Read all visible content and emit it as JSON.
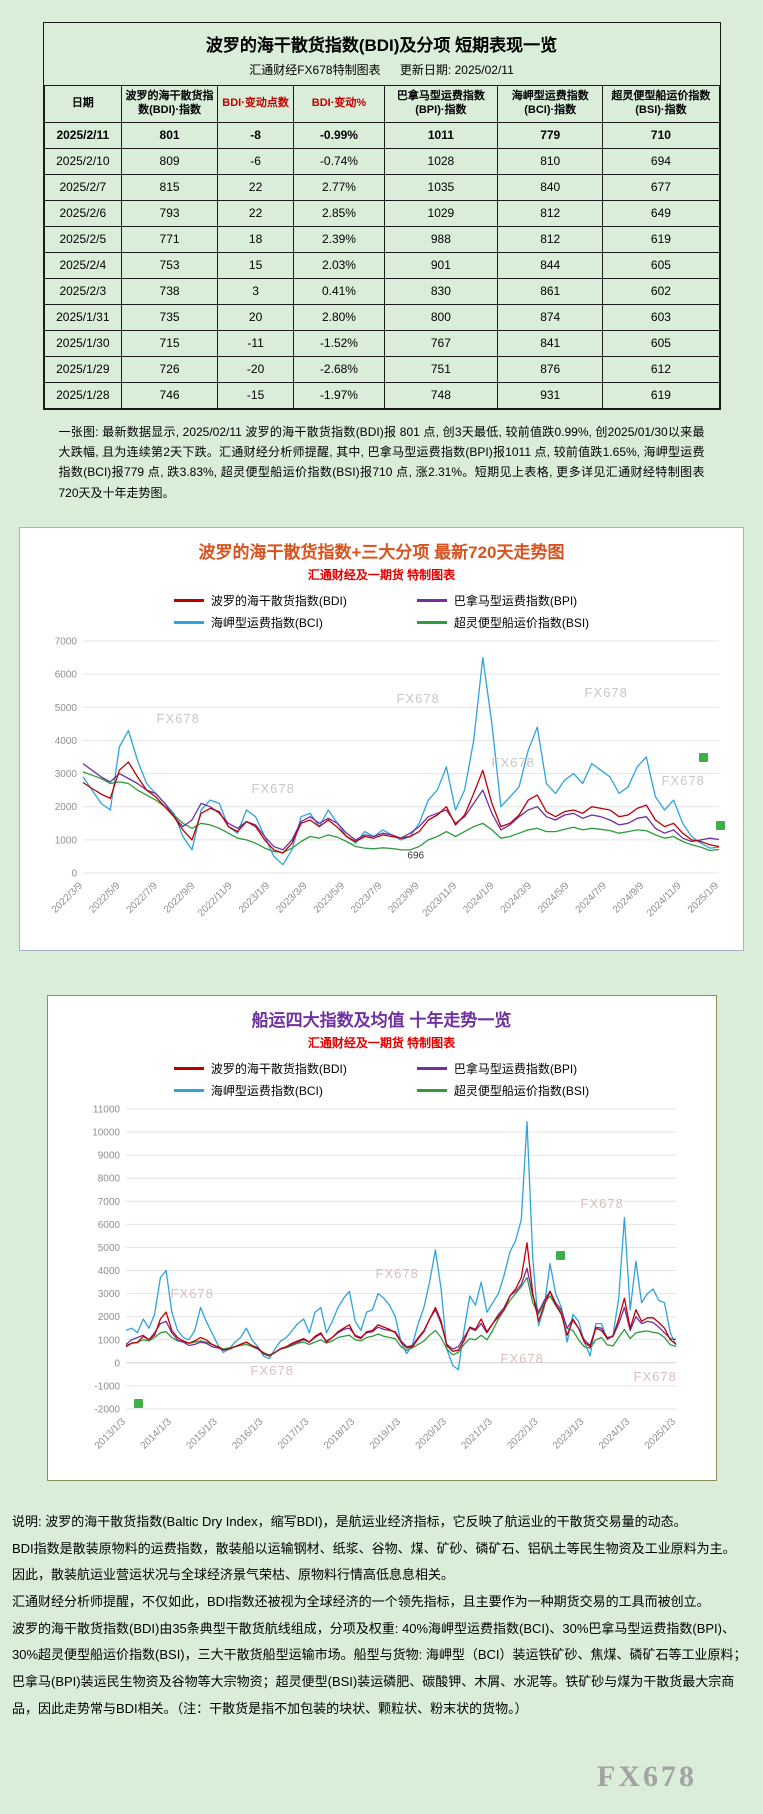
{
  "page": {
    "watermark": "FX678"
  },
  "colors": {
    "bdi": "#c00000",
    "bpi": "#7030a0",
    "bci": "#2fa3dc",
    "bsi": "#2e9b3e",
    "chart1_title": "#d9531e",
    "chart2_title": "#7030a0",
    "subtitle_red": "#e00000",
    "header_red": "#c00000"
  },
  "table_section": {
    "title": "波罗的海干散货指数(BDI)及分项 短期表现一览",
    "subtitle_left": "汇通财经FX678特制图表",
    "subtitle_right": "更新日期: 2025/02/11",
    "columns": [
      "日期",
      "波罗的海干散货指数(BDI)·指数",
      "BDI·变动点数",
      "BDI·变动%",
      "巴拿马型运费指数(BPI)·指数",
      "海岬型运费指数(BCI)·指数",
      "超灵便型船运价指数(BSI)·指数"
    ],
    "rows": [
      [
        "2025/2/11",
        "801",
        "-8",
        "-0.99%",
        "1011",
        "779",
        "710"
      ],
      [
        "2025/2/10",
        "809",
        "-6",
        "-0.74%",
        "1028",
        "810",
        "694"
      ],
      [
        "2025/2/7",
        "815",
        "22",
        "2.77%",
        "1035",
        "840",
        "677"
      ],
      [
        "2025/2/6",
        "793",
        "22",
        "2.85%",
        "1029",
        "812",
        "649"
      ],
      [
        "2025/2/5",
        "771",
        "18",
        "2.39%",
        "988",
        "812",
        "619"
      ],
      [
        "2025/2/4",
        "753",
        "15",
        "2.03%",
        "901",
        "844",
        "605"
      ],
      [
        "2025/2/3",
        "738",
        "3",
        "0.41%",
        "830",
        "861",
        "602"
      ],
      [
        "2025/1/31",
        "735",
        "20",
        "2.80%",
        "800",
        "874",
        "603"
      ],
      [
        "2025/1/30",
        "715",
        "-11",
        "-1.52%",
        "767",
        "841",
        "605"
      ],
      [
        "2025/1/29",
        "726",
        "-20",
        "-2.68%",
        "751",
        "876",
        "612"
      ],
      [
        "2025/1/28",
        "746",
        "-15",
        "-1.97%",
        "748",
        "931",
        "619"
      ]
    ],
    "note": "一张图: 最新数据显示, 2025/02/11 波罗的海干散货指数(BDI)报 801 点, 创3天最低, 较前值跌0.99%, 创2025/01/30以来最大跌幅, 且为连续第2天下跌。汇通财经分析师提醒, 其中, 巴拿马型运费指数(BPI)报1011 点, 较前值跌1.65%, 海岬型运费指数(BCI)报779 点, 跌3.83%, 超灵便型船运价指数(BSI)报710 点, 涨2.31%。短期见上表格, 更多详见汇通财经特制图表720天及十年走势图。"
  },
  "chart_data": [
    {
      "type": "line",
      "title": "波罗的海干散货指数+三大分项  最新720天走势图",
      "subtitle": "汇通财经及一期货 特制图表",
      "ylim": [
        0,
        7000
      ],
      "ytick_step": 1000,
      "grid": true,
      "legend_position": "top",
      "xticklabels": [
        "2022/3/9",
        "2022/5/9",
        "2022/7/9",
        "2022/9/9",
        "2022/11/9",
        "2023/1/9",
        "2023/3/9",
        "2023/5/9",
        "2023/7/9",
        "2023/9/9",
        "2023/11/9",
        "2024/1/9",
        "2024/3/9",
        "2024/5/9",
        "2024/7/9",
        "2024/9/9",
        "2024/11/9",
        "2025/1/9"
      ],
      "annotation": {
        "text": "696",
        "x_frac": 0.51,
        "y": 430
      },
      "series": [
        {
          "key": "bdi",
          "name": "波罗的海干散货指数(BDI)",
          "color": "#c00000",
          "values": [
            2730,
            2550,
            2380,
            2250,
            3100,
            3350,
            2900,
            2500,
            2300,
            2000,
            1700,
            1300,
            1000,
            1800,
            1950,
            1850,
            1400,
            1250,
            1550,
            1400,
            1000,
            700,
            600,
            900,
            1500,
            1600,
            1400,
            1600,
            1380,
            1100,
            950,
            1100,
            1050,
            1150,
            1100,
            1050,
            1100,
            1250,
            1600,
            1750,
            2000,
            1450,
            1750,
            2400,
            3100,
            2100,
            1400,
            1500,
            1750,
            2200,
            2350,
            1850,
            1700,
            1850,
            1900,
            1800,
            2000,
            1950,
            1900,
            1700,
            1750,
            1950,
            2050,
            1600,
            1400,
            1500,
            1200,
            1000,
            950,
            850,
            801
          ]
        },
        {
          "key": "bpi",
          "name": "巴拿马型运费指数(BPI)",
          "color": "#7030a0",
          "values": [
            3300,
            3100,
            2900,
            2750,
            3000,
            2850,
            2700,
            2500,
            2400,
            2100,
            1700,
            1400,
            1600,
            2100,
            2000,
            1800,
            1500,
            1350,
            1550,
            1450,
            1100,
            800,
            700,
            1000,
            1550,
            1700,
            1500,
            1650,
            1500,
            1200,
            1000,
            1150,
            1100,
            1200,
            1150,
            1050,
            1200,
            1400,
            1700,
            1800,
            1900,
            1500,
            1700,
            2100,
            2500,
            1800,
            1300,
            1450,
            1700,
            1900,
            2000,
            1700,
            1600,
            1750,
            1800,
            1650,
            1750,
            1700,
            1600,
            1450,
            1500,
            1650,
            1700,
            1350,
            1200,
            1300,
            1050,
            950,
            1000,
            1050,
            1011
          ]
        },
        {
          "key": "bci",
          "name": "海岬型运费指数(BCI)",
          "color": "#2fa3dc",
          "values": [
            2900,
            2500,
            2100,
            1900,
            3800,
            4300,
            3400,
            2700,
            2400,
            2100,
            1800,
            1100,
            700,
            1900,
            2200,
            2100,
            1400,
            1200,
            1900,
            1700,
            1100,
            500,
            250,
            700,
            1700,
            1800,
            1400,
            1900,
            1500,
            1100,
            900,
            1250,
            1100,
            1300,
            1150,
            1000,
            1100,
            1500,
            2200,
            2500,
            3200,
            1900,
            2500,
            4000,
            6500,
            4500,
            2000,
            2300,
            2600,
            3700,
            4400,
            2700,
            2400,
            2800,
            3000,
            2700,
            3300,
            3100,
            2900,
            2400,
            2600,
            3200,
            3500,
            2300,
            1900,
            2200,
            1500,
            1100,
            900,
            750,
            779
          ]
        },
        {
          "key": "bsi",
          "name": "超灵便型船运价指数(BSI)",
          "color": "#2e9b3e",
          "values": [
            3050,
            2950,
            2850,
            2700,
            2750,
            2700,
            2500,
            2350,
            2200,
            2000,
            1750,
            1500,
            1350,
            1500,
            1450,
            1350,
            1200,
            1050,
            1000,
            900,
            750,
            650,
            620,
            750,
            950,
            1100,
            1050,
            1150,
            1080,
            950,
            800,
            750,
            730,
            760,
            740,
            700,
            696,
            800,
            1000,
            1100,
            1250,
            1100,
            1250,
            1400,
            1500,
            1300,
            1050,
            1100,
            1200,
            1300,
            1350,
            1250,
            1250,
            1320,
            1380,
            1300,
            1350,
            1320,
            1280,
            1200,
            1250,
            1300,
            1280,
            1150,
            1050,
            1100,
            950,
            850,
            780,
            680,
            710
          ]
        }
      ]
    },
    {
      "type": "line",
      "title": "船运四大指数及均值 十年走势一览",
      "subtitle": "汇通财经及一期货 特制图表",
      "ylim": [
        -2000,
        11000
      ],
      "ytick_step": 1000,
      "grid": true,
      "legend_position": "top",
      "xticklabels": [
        "2013/1/3",
        "2014/1/3",
        "2015/1/3",
        "2016/1/3",
        "2017/1/3",
        "2018/1/3",
        "2019/1/3",
        "2020/1/3",
        "2021/1/3",
        "2022/1/3",
        "2023/1/3",
        "2024/1/3",
        "2025/1/3"
      ],
      "series": [
        {
          "key": "bdi",
          "name": "波罗的海干散货指数(BDI)",
          "color": "#c00000",
          "values": [
            700,
            850,
            880,
            1150,
            1000,
            1200,
            1900,
            2200,
            1400,
            1100,
            950,
            850,
            950,
            1100,
            1000,
            800,
            700,
            560,
            590,
            700,
            800,
            900,
            750,
            650,
            400,
            300,
            450,
            620,
            700,
            850,
            950,
            1050,
            900,
            1150,
            1300,
            900,
            1100,
            1350,
            1500,
            1650,
            1150,
            1050,
            1350,
            1400,
            1650,
            1550,
            1450,
            1300,
            900,
            650,
            700,
            1050,
            1350,
            1900,
            2400,
            1800,
            750,
            500,
            550,
            950,
            1550,
            1450,
            1900,
            1350,
            1700,
            2000,
            2300,
            2900,
            3200,
            3700,
            5200,
            3000,
            1800,
            2500,
            3100,
            2500,
            2100,
            1200,
            1850,
            1500,
            900,
            700,
            1500,
            1400,
            1050,
            1150,
            1900,
            2800,
            1500,
            2300,
            1800,
            1950,
            1950,
            1750,
            1500,
            1000,
            801
          ]
        },
        {
          "key": "bpi",
          "name": "巴拿马型运费指数(BPI)",
          "color": "#7030a0",
          "values": [
            800,
            1000,
            1100,
            1200,
            1000,
            1300,
            1700,
            1800,
            1300,
            1000,
            900,
            750,
            800,
            900,
            850,
            700,
            650,
            550,
            600,
            700,
            800,
            900,
            750,
            600,
            400,
            300,
            450,
            600,
            700,
            800,
            900,
            1000,
            900,
            1100,
            1250,
            950,
            1100,
            1300,
            1450,
            1500,
            1200,
            1100,
            1300,
            1350,
            1550,
            1450,
            1400,
            1350,
            950,
            700,
            750,
            1100,
            1400,
            1900,
            2300,
            1700,
            800,
            600,
            700,
            1100,
            1500,
            1400,
            1700,
            1300,
            1700,
            2100,
            2400,
            2900,
            3100,
            3400,
            4100,
            2900,
            2200,
            2700,
            3100,
            2600,
            2300,
            1500,
            1900,
            1500,
            1000,
            750,
            1550,
            1500,
            1100,
            1150,
            1700,
            2400,
            1400,
            2000,
            1700,
            1800,
            1750,
            1550,
            1300,
            1050,
            1011
          ]
        },
        {
          "key": "bci",
          "name": "海岬型运费指数(BCI)",
          "color": "#2fa3dc",
          "values": [
            1400,
            1500,
            1300,
            1900,
            1500,
            2100,
            3700,
            4000,
            2200,
            1400,
            1100,
            1000,
            1400,
            2400,
            1800,
            1300,
            800,
            450,
            600,
            900,
            1100,
            1500,
            1000,
            700,
            300,
            180,
            600,
            950,
            1100,
            1400,
            1700,
            1900,
            1300,
            2200,
            2400,
            1300,
            1800,
            2400,
            2800,
            3100,
            1800,
            1400,
            2200,
            2300,
            3000,
            2800,
            2500,
            2000,
            900,
            400,
            800,
            1700,
            2400,
            3500,
            4900,
            3200,
            600,
            -100,
            -300,
            1400,
            2900,
            2500,
            3500,
            2200,
            2600,
            3000,
            3800,
            4800,
            5300,
            6200,
            10450,
            4500,
            1600,
            2400,
            4300,
            3000,
            2400,
            900,
            2100,
            1800,
            900,
            300,
            1700,
            1700,
            1000,
            1200,
            2800,
            6300,
            2300,
            4400,
            2600,
            3000,
            3200,
            2700,
            2600,
            1300,
            779
          ]
        },
        {
          "key": "bsi",
          "name": "超灵便型船运价指数(BSI)",
          "color": "#2e9b3e",
          "values": [
            750,
            850,
            900,
            1000,
            950,
            1100,
            1300,
            1350,
            1100,
            950,
            900,
            850,
            900,
            950,
            900,
            800,
            700,
            600,
            650,
            700,
            750,
            800,
            700,
            600,
            450,
            350,
            450,
            600,
            650,
            750,
            850,
            900,
            800,
            900,
            1000,
            850,
            950,
            1100,
            1150,
            1200,
            1000,
            950,
            1100,
            1150,
            1250,
            1150,
            1100,
            1050,
            700,
            550,
            650,
            800,
            950,
            1200,
            1400,
            1100,
            600,
            350,
            450,
            800,
            1050,
            1000,
            1200,
            1000,
            1400,
            1900,
            2300,
            2700,
            3000,
            3300,
            3700,
            2600,
            2100,
            2600,
            2900,
            2500,
            2200,
            1500,
            1400,
            1000,
            700,
            640,
            1000,
            1100,
            780,
            730,
            1100,
            1450,
            1050,
            1300,
            1350,
            1380,
            1320,
            1280,
            1100,
            780,
            710
          ]
        }
      ]
    }
  ],
  "footer": {
    "lines": [
      "说明: 波罗的海干散货指数(Baltic Dry Index，缩写BDI)，是航运业经济指标，它反映了航运业的干散货交易量的动态。",
      "BDI指数是散装原物料的运费指数，散装船以运输钢材、纸浆、谷物、煤、矿砂、磷矿石、铝矾土等民生物资及工业原料为主。",
      "因此，散装航运业营运状况与全球经济景气荣枯、原物料行情高低息息相关。",
      "汇通财经分析师提醒，不仅如此，BDI指数还被视为全球经济的一个领先指标，且主要作为一种期货交易的工具而被创立。",
      "波罗的海干散货指数(BDI)由35条典型干散货航线组成，分项及权重: 40%海岬型运费指数(BCI)、30%巴拿马型运费指数(BPI)、30%超灵便型船运价指数(BSI)，三大干散货船型运输市场。船型与货物: 海岬型（BCI）装运铁矿砂、焦煤、磷矿石等工业原料；巴拿马(BPI)装运民生物资及谷物等大宗物资；超灵便型(BSI)装运磷肥、碳酸钾、木屑、水泥等。铁矿砂与煤为干散货最大宗商品，因此走势常与BDI相关。（注：干散货是指不加包装的块状、颗粒状、粉末状的货物。）"
    ]
  }
}
